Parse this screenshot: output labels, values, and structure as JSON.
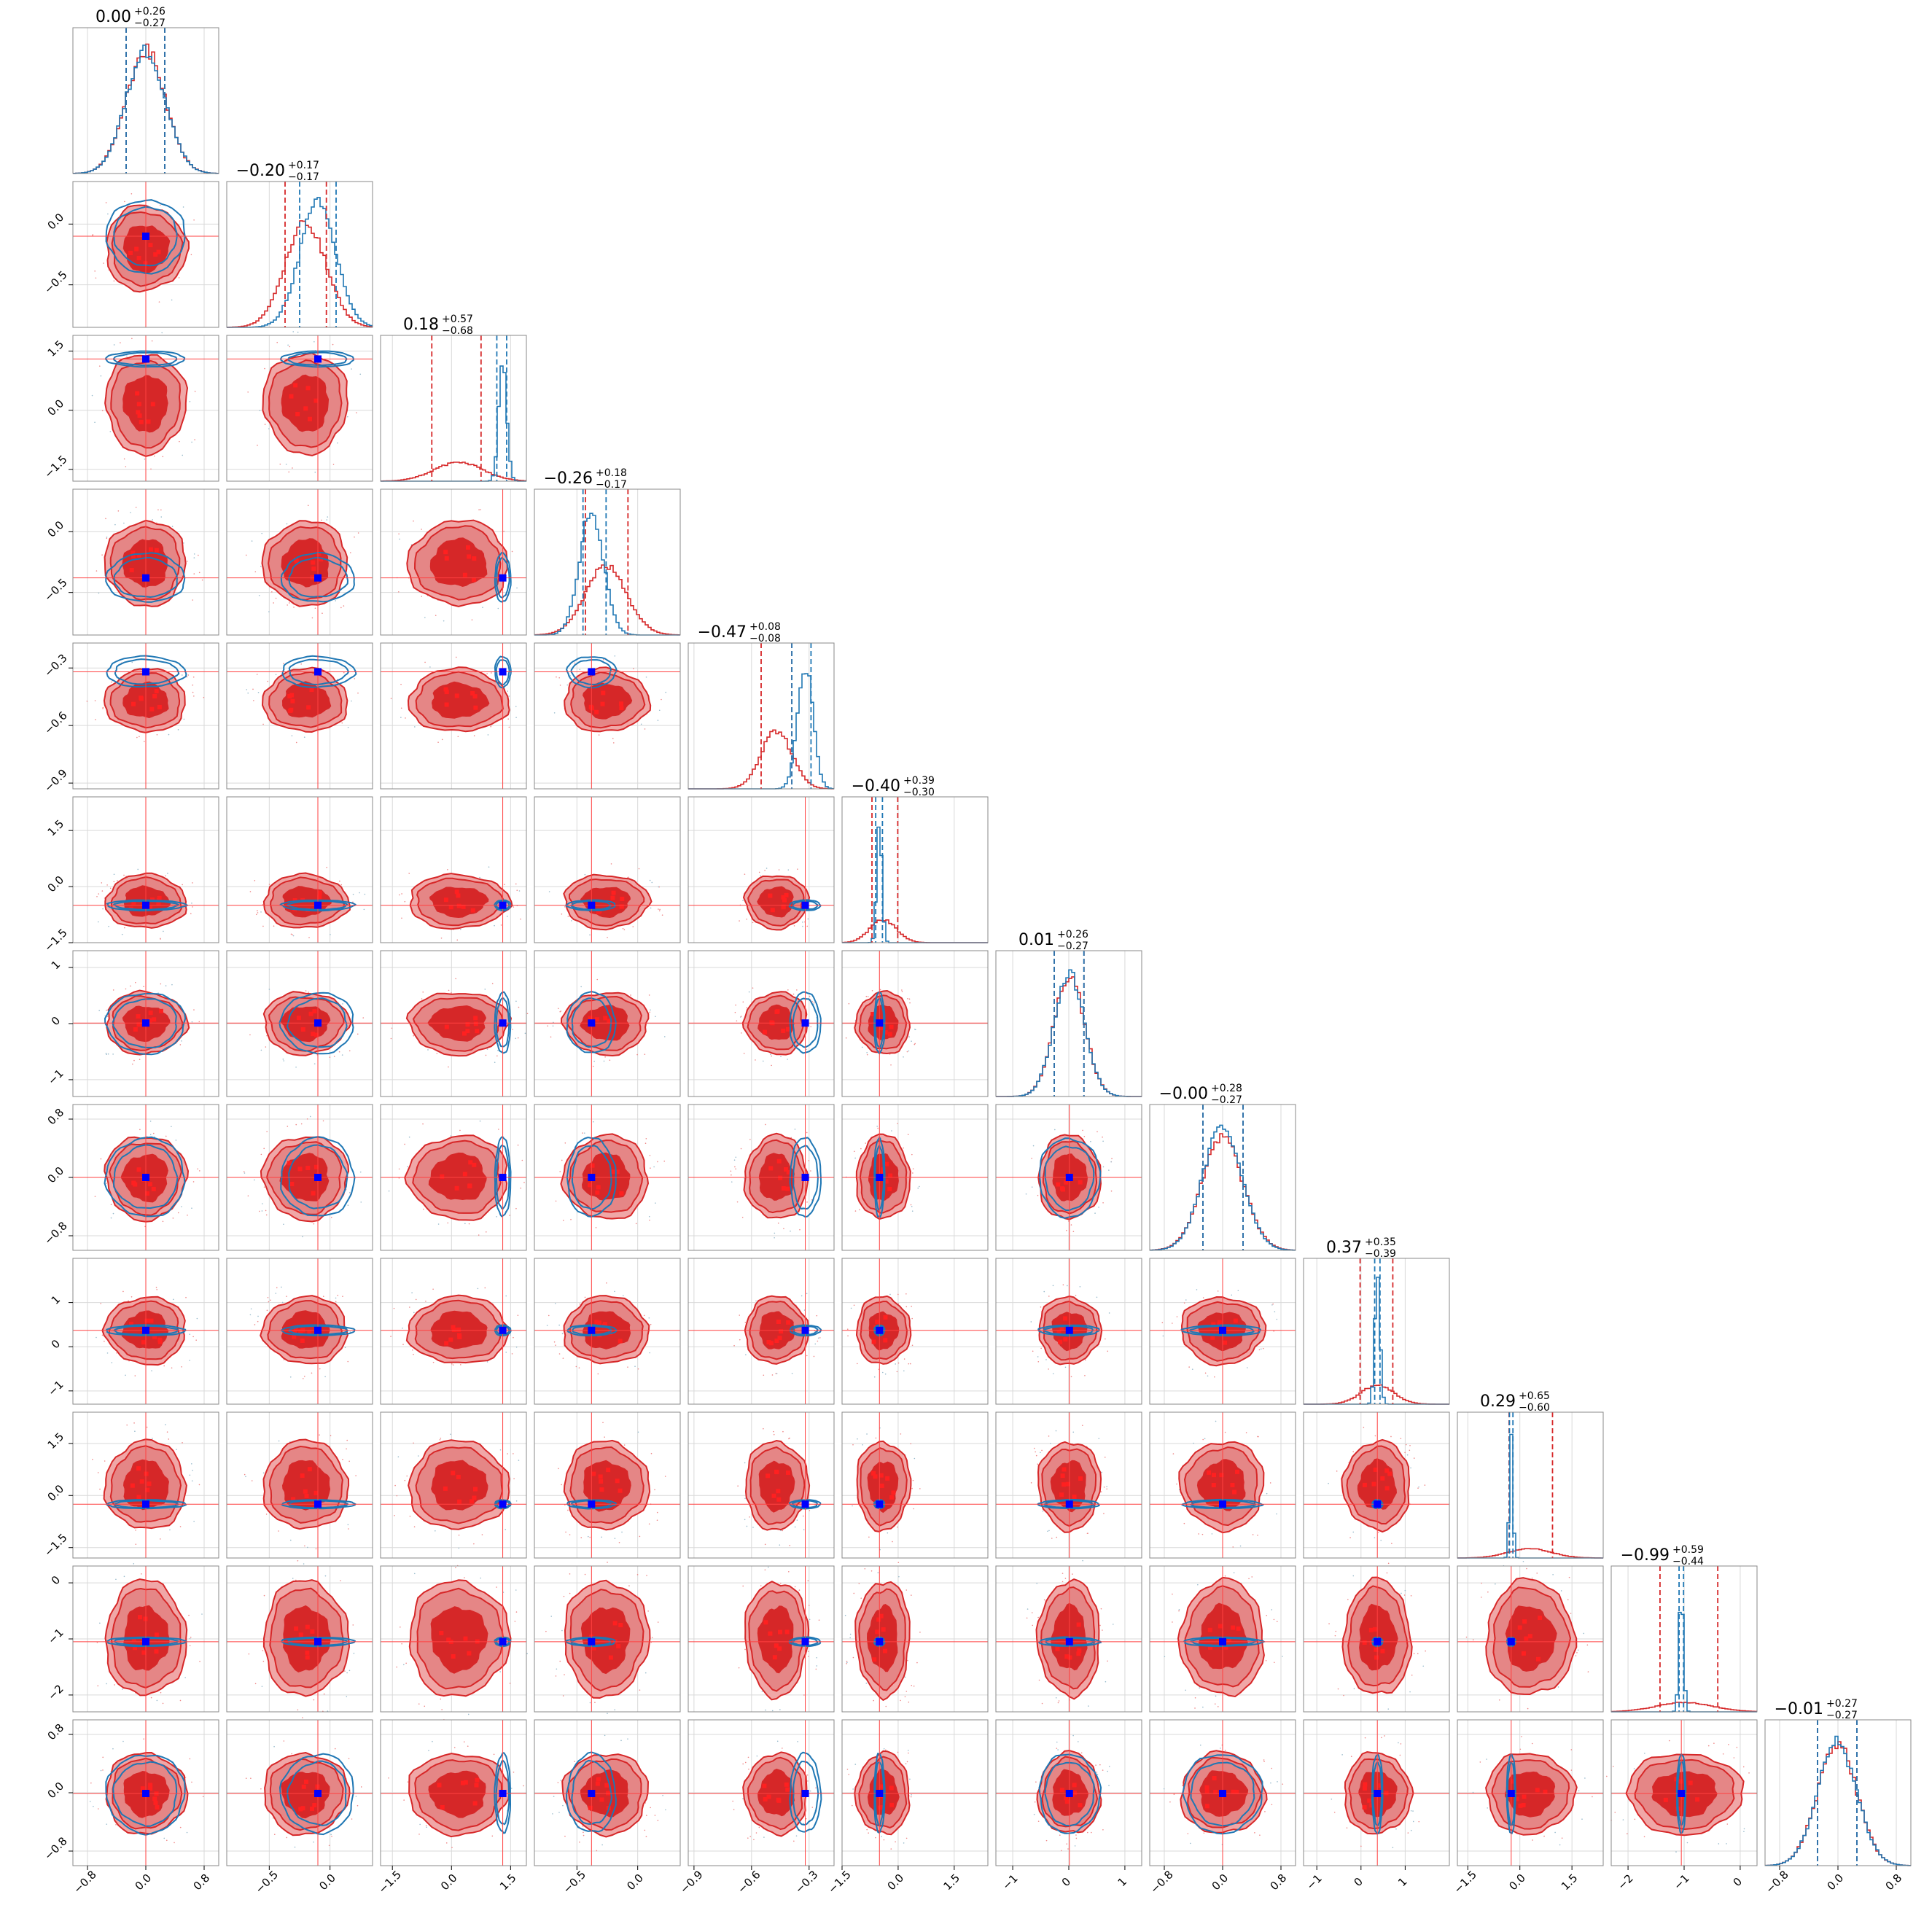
{
  "chart_data": {
    "type": "corner",
    "n_params": 12,
    "series": [
      {
        "color": "#d62728",
        "line": "#d62728"
      },
      {
        "color": "#1f77b4",
        "line": "#1f77b4"
      }
    ],
    "marker_colors": {
      "truth": "#0000ff",
      "samples": "#ff0000"
    },
    "params": [
      {
        "center": 0.0,
        "range": [
          -1.0,
          1.0
        ],
        "ticks": [
          -0.8,
          0.0,
          0.8
        ],
        "tick_labels": [
          "−0.8",
          "0.0",
          "0.8"
        ],
        "title": {
          "value": "0.00",
          "plus": "+0.26",
          "minus": "−0.27"
        },
        "red": {
          "mean": 0.0,
          "sd": 0.27
        },
        "blue": {
          "mean": 0.0,
          "sd": 0.27
        },
        "q_red": [
          -0.27,
          0.0,
          0.26
        ],
        "q_blue": [
          -0.27,
          0.0,
          0.26
        ]
      },
      {
        "center": -0.2,
        "range": [
          -0.85,
          0.35
        ],
        "ticks": [
          -0.5,
          0.0
        ],
        "tick_labels": [
          "−0.5",
          "0.0"
        ],
        "title": {
          "value": "−0.20",
          "plus": "+0.17",
          "minus": "−0.17"
        },
        "red": {
          "mean": -0.2,
          "sd": 0.17
        },
        "blue": {
          "mean": -0.1,
          "sd": 0.15
        },
        "q_red": [
          -0.37,
          -0.2,
          -0.03
        ],
        "q_blue": [
          -0.25,
          -0.1,
          0.05
        ]
      },
      {
        "center": 0.18,
        "range": [
          -1.8,
          1.9
        ],
        "ticks": [
          -1.5,
          0.0,
          1.5
        ],
        "tick_labels": [
          "−1.5",
          "0.0",
          "1.5"
        ],
        "title": {
          "value": "0.18",
          "plus": "+0.57",
          "minus": "−0.68"
        },
        "red": {
          "mean": 0.18,
          "sd": 0.62
        },
        "blue": {
          "mean": 1.3,
          "sd": 0.1
        },
        "q_red": [
          -0.5,
          0.18,
          0.75
        ],
        "q_blue": [
          1.15,
          1.3,
          1.4
        ]
      },
      {
        "center": -0.26,
        "range": [
          -0.85,
          0.35
        ],
        "ticks": [
          -0.5,
          0.0
        ],
        "tick_labels": [
          "−0.5",
          "0.0"
        ],
        "title": {
          "value": "−0.26",
          "plus": "+0.18",
          "minus": "−0.17"
        },
        "red": {
          "mean": -0.26,
          "sd": 0.17
        },
        "blue": {
          "mean": -0.38,
          "sd": 0.1
        },
        "q_red": [
          -0.43,
          -0.26,
          -0.08
        ],
        "q_blue": [
          -0.45,
          -0.38,
          -0.26
        ]
      },
      {
        "center": -0.47,
        "range": [
          -0.93,
          -0.17
        ],
        "ticks": [
          -0.9,
          -0.6,
          -0.3
        ],
        "tick_labels": [
          "−0.9",
          "−0.6",
          "−0.3"
        ],
        "title": {
          "value": "−0.47",
          "plus": "+0.08",
          "minus": "−0.08"
        },
        "red": {
          "mean": -0.47,
          "sd": 0.08
        },
        "blue": {
          "mean": -0.32,
          "sd": 0.04
        },
        "q_red": [
          -0.55,
          -0.47,
          -0.39
        ],
        "q_blue": [
          -0.39,
          -0.32,
          -0.29
        ]
      },
      {
        "center": -0.4,
        "range": [
          -1.5,
          2.4
        ],
        "ticks": [
          -1.5,
          0.0,
          1.5
        ],
        "tick_labels": [
          "−1.5",
          "0.0",
          "1.5"
        ],
        "title": {
          "value": "−0.40",
          "plus": "+0.39",
          "minus": "−0.30"
        },
        "red": {
          "mean": -0.4,
          "sd": 0.35
        },
        "blue": {
          "mean": -0.5,
          "sd": 0.07
        },
        "q_red": [
          -0.7,
          -0.4,
          -0.01
        ],
        "q_blue": [
          -0.6,
          -0.5,
          -0.42
        ]
      },
      {
        "center": 0.01,
        "range": [
          -1.3,
          1.3
        ],
        "ticks": [
          -1,
          0,
          1
        ],
        "tick_labels": [
          "−1",
          "0",
          "1"
        ],
        "title": {
          "value": "0.01",
          "plus": "+0.26",
          "minus": "−0.27"
        },
        "red": {
          "mean": 0.01,
          "sd": 0.27
        },
        "blue": {
          "mean": 0.01,
          "sd": 0.27
        },
        "q_red": [
          -0.26,
          0.01,
          0.27
        ],
        "q_blue": [
          -0.26,
          0.01,
          0.27
        ]
      },
      {
        "center": 0.0,
        "range": [
          -1.0,
          1.0
        ],
        "ticks": [
          -0.8,
          0.0,
          0.8
        ],
        "tick_labels": [
          "−0.8",
          "0.0",
          "0.8"
        ],
        "title": {
          "value": "−0.00",
          "plus": "+0.28",
          "minus": "−0.27"
        },
        "red": {
          "mean": 0.0,
          "sd": 0.28
        },
        "blue": {
          "mean": 0.0,
          "sd": 0.27
        },
        "q_red": [
          -0.27,
          0.0,
          0.28
        ],
        "q_blue": [
          -0.27,
          0.0,
          0.28
        ]
      },
      {
        "center": 0.37,
        "range": [
          -1.3,
          2.0
        ],
        "ticks": [
          -1,
          0,
          1
        ],
        "tick_labels": [
          "−1",
          "0",
          "1"
        ],
        "title": {
          "value": "0.37",
          "plus": "+0.35",
          "minus": "−0.39"
        },
        "red": {
          "mean": 0.37,
          "sd": 0.37
        },
        "blue": {
          "mean": 0.37,
          "sd": 0.06
        },
        "q_red": [
          -0.02,
          0.37,
          0.72
        ],
        "q_blue": [
          0.31,
          0.37,
          0.43
        ]
      },
      {
        "center": 0.29,
        "range": [
          -1.8,
          2.4
        ],
        "ticks": [
          -1.5,
          0.0,
          1.5
        ],
        "tick_labels": [
          "−1.5",
          "0.0",
          "1.5"
        ],
        "title": {
          "value": "0.29",
          "plus": "+0.65",
          "minus": "−0.60"
        },
        "red": {
          "mean": 0.29,
          "sd": 0.62
        },
        "blue": {
          "mean": -0.25,
          "sd": 0.05
        },
        "q_red": [
          -0.31,
          0.29,
          0.94
        ],
        "q_blue": [
          -0.3,
          -0.25,
          -0.2
        ]
      },
      {
        "center": -0.99,
        "range": [
          -2.3,
          0.3
        ],
        "ticks": [
          -2,
          -1,
          0
        ],
        "tick_labels": [
          "−2",
          "−1",
          "0"
        ],
        "title": {
          "value": "−0.99",
          "plus": "+0.59",
          "minus": "−0.44"
        },
        "red": {
          "mean": -0.99,
          "sd": 0.5
        },
        "blue": {
          "mean": -1.05,
          "sd": 0.04
        },
        "q_red": [
          -1.43,
          -0.99,
          -0.4
        ],
        "q_blue": [
          -1.09,
          -1.05,
          -1.01
        ]
      },
      {
        "center": -0.01,
        "range": [
          -1.0,
          1.0
        ],
        "ticks": [
          -0.8,
          0.0,
          0.8
        ],
        "tick_labels": [
          "−0.8",
          "0.0",
          "0.8"
        ],
        "title": {
          "value": "−0.01",
          "plus": "+0.27",
          "minus": "−0.27"
        },
        "red": {
          "mean": -0.01,
          "sd": 0.27
        },
        "blue": {
          "mean": -0.01,
          "sd": 0.27
        },
        "q_red": [
          -0.28,
          -0.01,
          0.26
        ],
        "q_blue": [
          -0.28,
          -0.01,
          0.26
        ]
      }
    ]
  }
}
